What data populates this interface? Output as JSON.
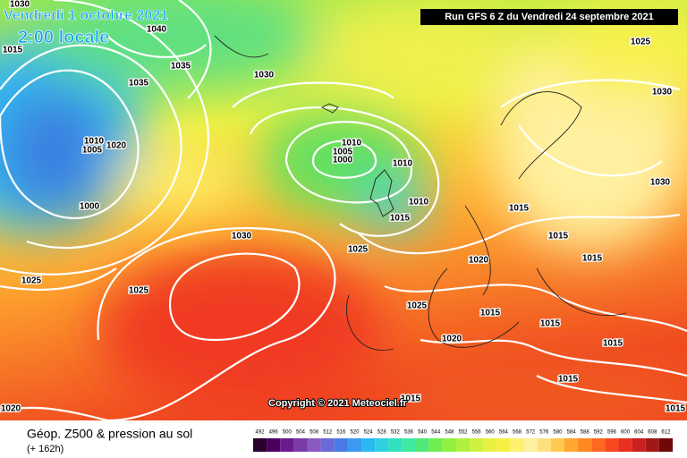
{
  "header": {
    "date": "Vendredi 1 octobre 2021",
    "time": "2:00 locale",
    "run": "Run GFS 6 Z du Vendredi 24 septembre 2021"
  },
  "map": {
    "isobar_labels": [
      1030,
      1040,
      1015,
      1035,
      1035,
      1030,
      1025,
      1030,
      1010,
      1005,
      1000,
      1010,
      1005,
      1020,
      1000,
      1010,
      1010,
      1015,
      1015,
      1015,
      1030,
      1030,
      1025,
      1020,
      1015,
      1025,
      1025,
      1025,
      1015,
      1015,
      1015,
      1020,
      1015,
      1015,
      1020,
      1015
    ],
    "copyright": "Copyright © 2021 Meteociel.fr"
  },
  "footer": {
    "title": "Géop. Z500 & pression au sol",
    "lead": "(+ 162h)"
  },
  "colorbar": {
    "ticks": [
      492,
      496,
      500,
      504,
      508,
      512,
      516,
      520,
      524,
      528,
      532,
      536,
      540,
      544,
      548,
      552,
      556,
      560,
      564,
      568,
      572,
      576,
      580,
      584,
      588,
      592,
      596,
      600,
      604,
      608,
      612
    ],
    "colors": [
      "#2a0030",
      "#4b0060",
      "#6a1a8a",
      "#7a3aa8",
      "#8a5ac0",
      "#6a6ad8",
      "#4a7ae8",
      "#3a9af0",
      "#2ab8f0",
      "#30d0e0",
      "#30e0c0",
      "#40e8a0",
      "#50e878",
      "#70ee50",
      "#90f040",
      "#b0f040",
      "#d0f040",
      "#e8f040",
      "#f8f040",
      "#fff070",
      "#fff0a0",
      "#ffe080",
      "#ffc850",
      "#ffa830",
      "#ff8820",
      "#ff6820",
      "#f84820",
      "#e83020",
      "#c82020",
      "#a01818",
      "#700808"
    ]
  }
}
